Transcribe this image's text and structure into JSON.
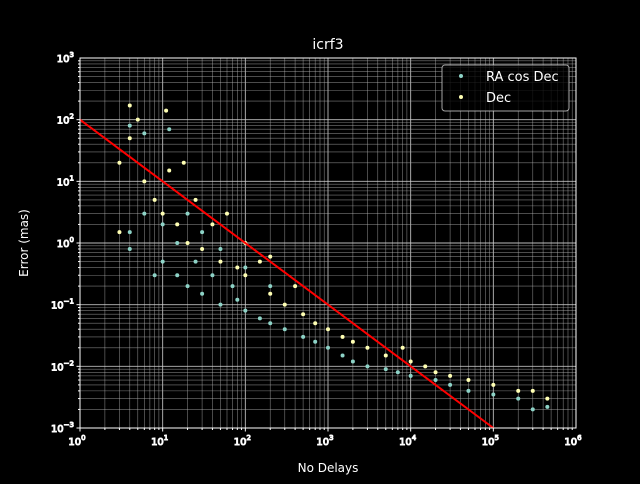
{
  "chart_data": {
    "type": "scatter",
    "title": "icrf3",
    "xlabel": "No Delays",
    "ylabel": "Error (mas)",
    "xscale": "log",
    "yscale": "log",
    "xlim": [
      1,
      1000000
    ],
    "ylim": [
      0.001,
      1000
    ],
    "grid": true,
    "grid_minor": true,
    "legend_position": "top-right",
    "x_ticks": [
      {
        "base": "10",
        "exp": "0",
        "v": 1
      },
      {
        "base": "10",
        "exp": "1",
        "v": 10
      },
      {
        "base": "10",
        "exp": "2",
        "v": 100
      },
      {
        "base": "10",
        "exp": "3",
        "v": 1000
      },
      {
        "base": "10",
        "exp": "4",
        "v": 10000
      },
      {
        "base": "10",
        "exp": "5",
        "v": 100000
      },
      {
        "base": "10",
        "exp": "6",
        "v": 1000000
      }
    ],
    "y_ticks": [
      {
        "base": "10",
        "exp": "−3",
        "v": 0.001
      },
      {
        "base": "10",
        "exp": "−2",
        "v": 0.01
      },
      {
        "base": "10",
        "exp": "−1",
        "v": 0.1
      },
      {
        "base": "10",
        "exp": "0",
        "v": 1
      },
      {
        "base": "10",
        "exp": "1",
        "v": 10
      },
      {
        "base": "10",
        "exp": "2",
        "v": 100
      },
      {
        "base": "10",
        "exp": "3",
        "v": 1000
      }
    ],
    "series": [
      {
        "name": "RA cos Dec",
        "color": "#8dd3c7",
        "points": [
          [
            4,
            0.8
          ],
          [
            4,
            1.5
          ],
          [
            4,
            80
          ],
          [
            6,
            60
          ],
          [
            6,
            3
          ],
          [
            8,
            0.3
          ],
          [
            10,
            0.5
          ],
          [
            10,
            2
          ],
          [
            12,
            70
          ],
          [
            15,
            0.3
          ],
          [
            15,
            1
          ],
          [
            20,
            0.2
          ],
          [
            20,
            3
          ],
          [
            25,
            0.5
          ],
          [
            30,
            0.15
          ],
          [
            30,
            1.5
          ],
          [
            40,
            0.3
          ],
          [
            50,
            0.1
          ],
          [
            50,
            0.8
          ],
          [
            70,
            0.2
          ],
          [
            80,
            0.12
          ],
          [
            100,
            0.08
          ],
          [
            100,
            0.4
          ],
          [
            150,
            0.06
          ],
          [
            200,
            0.05
          ],
          [
            200,
            0.2
          ],
          [
            300,
            0.04
          ],
          [
            500,
            0.03
          ],
          [
            700,
            0.025
          ],
          [
            1000,
            0.02
          ],
          [
            1500,
            0.015
          ],
          [
            2000,
            0.012
          ],
          [
            3000,
            0.01
          ],
          [
            5000,
            0.009
          ],
          [
            7000,
            0.008
          ],
          [
            10000,
            0.007
          ],
          [
            20000,
            0.006
          ],
          [
            30000,
            0.005
          ],
          [
            50000,
            0.004
          ],
          [
            100000,
            0.0035
          ],
          [
            200000,
            0.003
          ],
          [
            300000,
            0.002
          ],
          [
            450000,
            0.0022
          ]
        ]
      },
      {
        "name": "Dec",
        "color": "#ffffb3",
        "points": [
          [
            3,
            1.5
          ],
          [
            3,
            20
          ],
          [
            4,
            170
          ],
          [
            4,
            50
          ],
          [
            5,
            100
          ],
          [
            6,
            10
          ],
          [
            8,
            5
          ],
          [
            10,
            3
          ],
          [
            11,
            140
          ],
          [
            12,
            15
          ],
          [
            15,
            2
          ],
          [
            18,
            20
          ],
          [
            20,
            1
          ],
          [
            25,
            5
          ],
          [
            30,
            0.8
          ],
          [
            40,
            2
          ],
          [
            50,
            0.5
          ],
          [
            60,
            3
          ],
          [
            80,
            0.4
          ],
          [
            100,
            1
          ],
          [
            100,
            0.3
          ],
          [
            150,
            0.5
          ],
          [
            200,
            0.15
          ],
          [
            200,
            0.6
          ],
          [
            300,
            0.1
          ],
          [
            400,
            0.2
          ],
          [
            500,
            0.07
          ],
          [
            700,
            0.05
          ],
          [
            1000,
            0.04
          ],
          [
            1500,
            0.03
          ],
          [
            2000,
            0.025
          ],
          [
            3000,
            0.02
          ],
          [
            5000,
            0.015
          ],
          [
            8000,
            0.02
          ],
          [
            10000,
            0.012
          ],
          [
            15000,
            0.01
          ],
          [
            20000,
            0.008
          ],
          [
            30000,
            0.007
          ],
          [
            50000,
            0.006
          ],
          [
            100000,
            0.005
          ],
          [
            200000,
            0.004
          ],
          [
            300000,
            0.004
          ],
          [
            450000,
            0.003
          ]
        ]
      }
    ],
    "reference_line": {
      "color": "#ff0000",
      "points": [
        [
          1,
          100
        ],
        [
          100000,
          0.001
        ]
      ]
    }
  }
}
